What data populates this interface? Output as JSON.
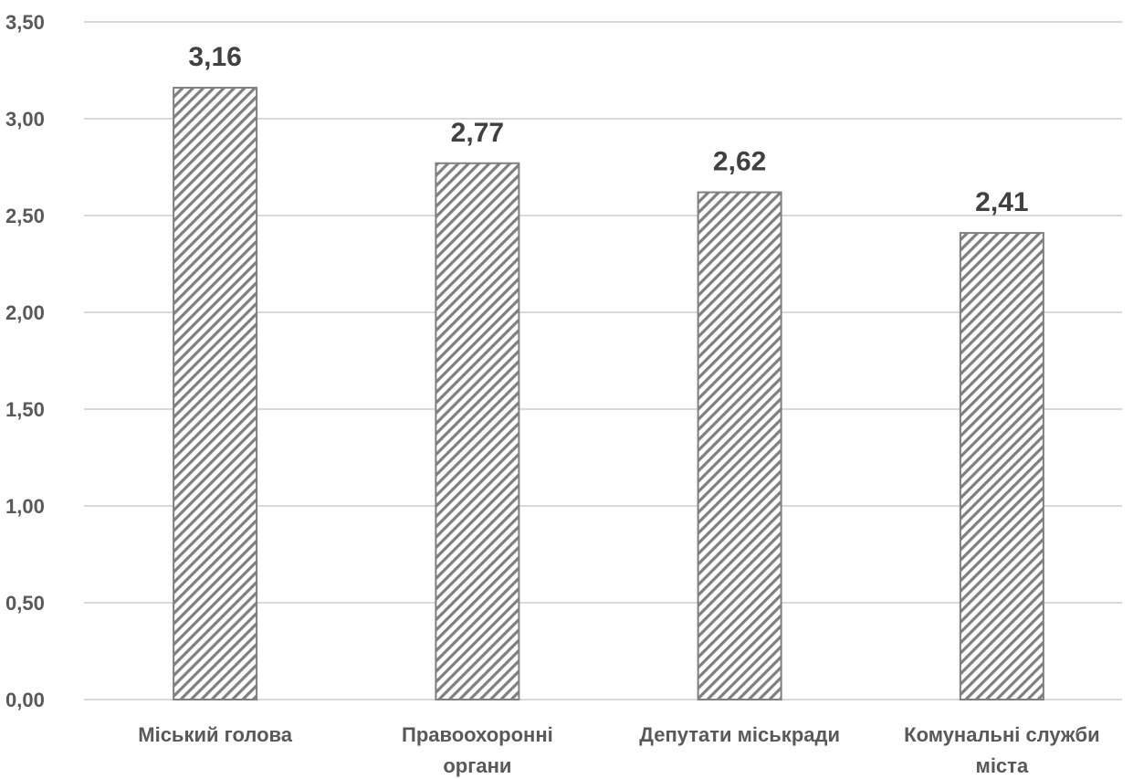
{
  "chart_data": {
    "type": "bar",
    "categories": [
      [
        "Міський голова"
      ],
      [
        "Правоохоронні",
        "органи"
      ],
      [
        "Депутати міськради"
      ],
      [
        "Комунальні служби",
        "міста"
      ]
    ],
    "values": [
      3.16,
      2.77,
      2.62,
      2.41
    ],
    "value_labels": [
      "3,16",
      "2,77",
      "2,62",
      "2,41"
    ],
    "title": "",
    "xlabel": "",
    "ylabel": "",
    "ylim": [
      0,
      3.5
    ],
    "yticks": [
      0,
      0.5,
      1.0,
      1.5,
      2.0,
      2.5,
      3.0,
      3.5
    ],
    "ytick_labels": [
      "0,00",
      "0,50",
      "1,00",
      "1,50",
      "2,00",
      "2,50",
      "3,00",
      "3,50"
    ],
    "grid": true,
    "legend": "none",
    "bar_fill": "diagonal-hatch",
    "colors": {
      "hatch": "#7f7f7f",
      "bar_border": "#7f7f7f",
      "grid": "#d9d9d9",
      "text": "#595959",
      "data_label": "#404040"
    }
  }
}
